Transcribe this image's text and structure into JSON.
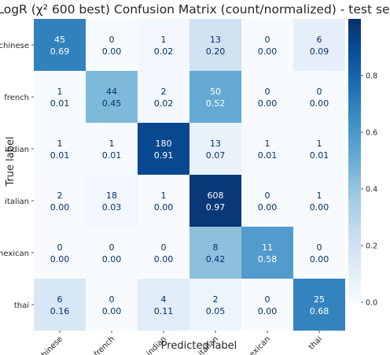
{
  "chart_data": {
    "type": "heatmap",
    "title": "LogR (χ² 600 best) Confusion Matrix (count/normalized) - test set",
    "xlabel": "Predicted label",
    "ylabel": "True label",
    "categories": [
      "chinese",
      "french",
      "indian",
      "italian",
      "mexican",
      "thai"
    ],
    "counts": [
      [
        45,
        0,
        1,
        13,
        0,
        6
      ],
      [
        1,
        44,
        2,
        50,
        0,
        0
      ],
      [
        1,
        1,
        180,
        13,
        1,
        1
      ],
      [
        2,
        18,
        1,
        608,
        0,
        1
      ],
      [
        0,
        0,
        0,
        8,
        11,
        0
      ],
      [
        6,
        0,
        4,
        2,
        0,
        25
      ]
    ],
    "normalized": [
      [
        0.69,
        0.0,
        0.02,
        0.2,
        0.0,
        0.09
      ],
      [
        0.01,
        0.45,
        0.02,
        0.52,
        0.0,
        0.0
      ],
      [
        0.01,
        0.01,
        0.91,
        0.07,
        0.01,
        0.01
      ],
      [
        0.0,
        0.03,
        0.0,
        0.97,
        0.0,
        0.0
      ],
      [
        0.0,
        0.0,
        0.0,
        0.42,
        0.58,
        0.0
      ],
      [
        0.16,
        0.0,
        0.11,
        0.05,
        0.0,
        0.68
      ]
    ],
    "colorbar": {
      "range": [
        0.0,
        1.0
      ],
      "ticks": [
        0.0,
        0.2,
        0.4,
        0.6,
        0.8
      ],
      "tick_labels": [
        "0.0",
        "0.2",
        "0.4",
        "0.6",
        "0.8"
      ],
      "colormap": "Blues"
    }
  }
}
